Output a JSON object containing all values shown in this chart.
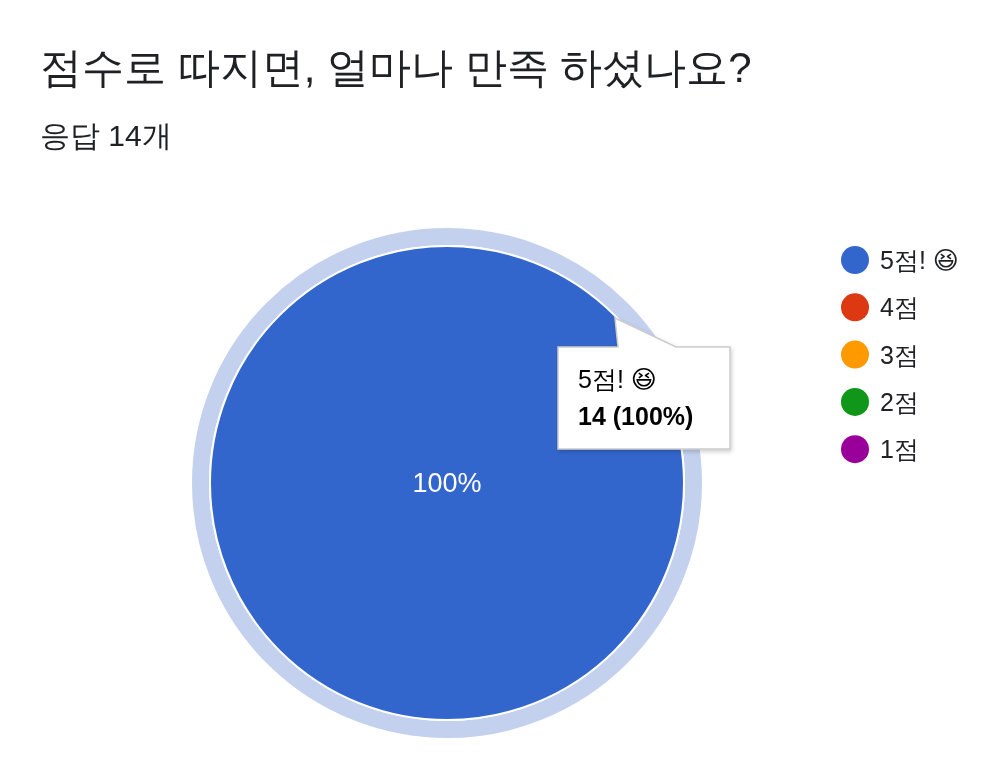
{
  "chart_data": {
    "type": "pie",
    "title": "점수로 따지면, 얼마나 만족 하셨나요?",
    "subtitle": "응답 14개",
    "categories": [
      "5점! 😆",
      "4점",
      "3점",
      "2점",
      "1점"
    ],
    "values": [
      100,
      0,
      0,
      0,
      0
    ],
    "colors": [
      "#3366cc",
      "#dc3912",
      "#ff9900",
      "#109618",
      "#990099"
    ],
    "value_labels": [
      "100%",
      null,
      null,
      null,
      null
    ],
    "legend": "right",
    "annotations": [
      "5점! 😆\n14 (100%)"
    ]
  }
}
